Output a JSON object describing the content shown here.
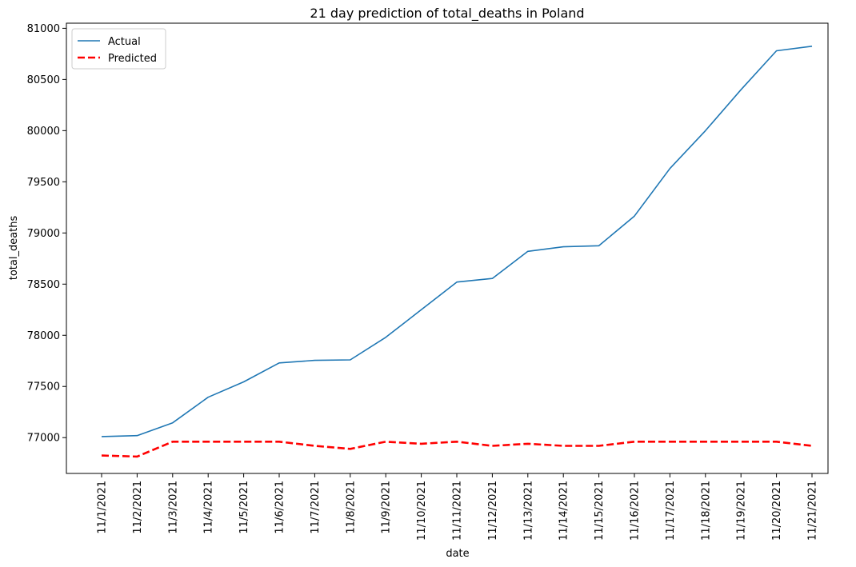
{
  "chart_data": {
    "type": "line",
    "title": "21 day prediction of total_deaths in Poland",
    "xlabel": "date",
    "ylabel": "total_deaths",
    "ylim": [
      76650,
      81050
    ],
    "yticks": [
      77000,
      77500,
      78000,
      78500,
      79000,
      79500,
      80000,
      80500,
      81000
    ],
    "grid": false,
    "legend_position": "top-left",
    "x": [
      "11/1/2021",
      "11/2/2021",
      "11/3/2021",
      "11/4/2021",
      "11/5/2021",
      "11/6/2021",
      "11/7/2021",
      "11/8/2021",
      "11/9/2021",
      "11/10/2021",
      "11/11/2021",
      "11/12/2021",
      "11/13/2021",
      "11/14/2021",
      "11/15/2021",
      "11/16/2021",
      "11/17/2021",
      "11/18/2021",
      "11/19/2021",
      "11/20/2021",
      "11/21/2021"
    ],
    "series": [
      {
        "name": "Actual",
        "color": "#1f77b4",
        "style": "solid",
        "values": [
          77010,
          77020,
          77145,
          77395,
          77545,
          77730,
          77755,
          77760,
          77980,
          78250,
          78520,
          78555,
          78820,
          78865,
          78875,
          79165,
          79630,
          80000,
          80400,
          80780,
          80825
        ]
      },
      {
        "name": "Predicted",
        "color": "#ff0000",
        "style": "dashed",
        "values": [
          76825,
          76815,
          76960,
          76960,
          76960,
          76960,
          76920,
          76890,
          76960,
          76940,
          76960,
          76920,
          76940,
          76920,
          76920,
          76960,
          76960,
          76960,
          76960,
          76960,
          76920
        ]
      }
    ]
  }
}
